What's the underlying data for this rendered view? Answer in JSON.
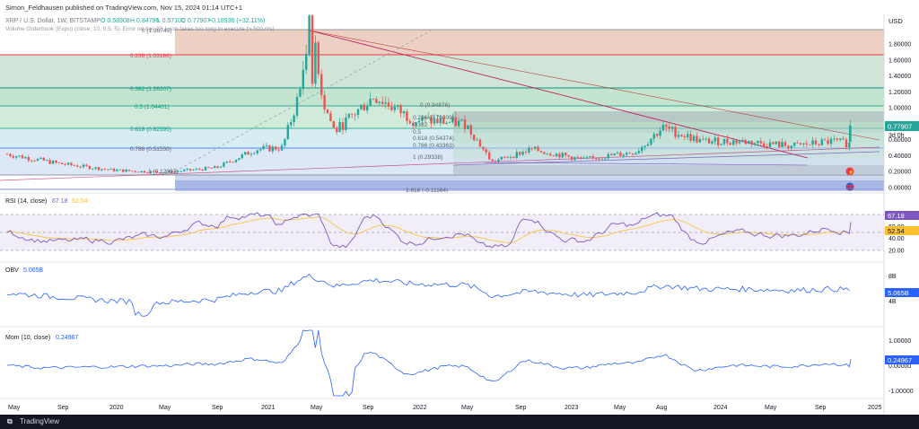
{
  "header": {
    "publisher": "Simon_Feldhausen published on TradingView.com, Nov 15, 2024 01:14 UTC+1",
    "currency": "USD"
  },
  "symbol_line": {
    "symbol": "XRP / U.S. Dollar, 1W, BITSTAMP",
    "open": "O 0.58908",
    "high": "H 0.84796",
    "low": "L 0.57100",
    "close": "C 0.77907",
    "change": "+0.18936 (+32.11%)"
  },
  "indicator_note": "Volume Orderbook (Expo) (close, 10, 0.5, 5): Error on bar 22: Loop takes too long to execute (> 500 ms)",
  "price_pane": {
    "axis_ticks": [
      "1.80000",
      "1.60000",
      "1.40000",
      "1.20000",
      "1.00000",
      "0.80000",
      "0.60000",
      "0.40000",
      "0.20000",
      "0.00000"
    ],
    "last_price": "0.77907",
    "countdown": "3d 0h",
    "fib_left": [
      "0 (1.96749)",
      "0.236 (1.53186)",
      "0.382 (1.26207)",
      "0.5 (1.04401)",
      "0.618 (0.82595)",
      "0.786 (0.51550)",
      "1 (0.12097)",
      "1.618 (-0.11164)"
    ],
    "fib_right": [
      "0 (0.94876)",
      "0.236 (0.79409)",
      "0.382",
      "0.5",
      "0.618 (0.54374)",
      "0.786 (0.43363)",
      "1 (0.29338)"
    ]
  },
  "rsi": {
    "label": "RSI (14, close)",
    "value": "67.18",
    "ma_value": "52.54",
    "axis_ticks": [
      "80.00",
      "60.00",
      "40.00",
      "20.00"
    ]
  },
  "obv": {
    "label": "OBV",
    "value": "5.065B",
    "axis_ticks": [
      "8B",
      "4B"
    ]
  },
  "mom": {
    "label": "Mom (10, close)",
    "value": "0.24967",
    "axis_ticks": [
      "1.00000",
      "0.00000",
      "-1.00000"
    ]
  },
  "x_axis": [
    "May",
    "Sep",
    "2020",
    "May",
    "Sep",
    "2021",
    "May",
    "Sep",
    "2022",
    "May",
    "Sep",
    "2023",
    "May",
    "Aug",
    "2024",
    "May",
    "Sep",
    "2025"
  ],
  "footer": {
    "brand": "TradingView"
  },
  "colors": {
    "up": "#26a69a",
    "down": "#ef5350",
    "rsi": "#7e57c2",
    "line": "#2962ff",
    "fib_red": "#f23645",
    "fib_green": "#089981"
  },
  "chart_data": {
    "type": "candlestick",
    "title": "XRP / U.S. Dollar, 1W, BITSTAMP",
    "ylim": [
      -0.1,
      1.9
    ],
    "series_close_approx": {
      "dates": [
        "2019-05",
        "2019-09",
        "2020-01",
        "2020-05",
        "2020-09",
        "2020-12",
        "2021-02",
        "2021-04",
        "2021-06",
        "2021-09",
        "2021-12",
        "2022-04",
        "2022-06",
        "2022-09",
        "2023-01",
        "2023-05",
        "2023-07",
        "2023-10",
        "2024-01",
        "2024-05",
        "2024-08",
        "2024-10",
        "2024-11"
      ],
      "close": [
        0.42,
        0.3,
        0.22,
        0.19,
        0.25,
        0.48,
        0.5,
        1.55,
        0.7,
        1.15,
        0.85,
        0.8,
        0.32,
        0.48,
        0.35,
        0.45,
        0.75,
        0.58,
        0.58,
        0.52,
        0.58,
        0.53,
        0.78
      ]
    },
    "fib_retracement_1": {
      "levels": [
        0,
        0.236,
        0.382,
        0.5,
        0.618,
        0.786,
        1,
        1.618
      ],
      "prices": [
        1.96749,
        1.53186,
        1.26207,
        1.04401,
        0.82595,
        0.5155,
        0.12097,
        -0.11164
      ]
    },
    "fib_retracement_2": {
      "levels": [
        0,
        0.236,
        0.618,
        0.786,
        1
      ],
      "prices": [
        0.94876,
        0.79409,
        0.54374,
        0.43363,
        0.29338
      ]
    },
    "rsi_last": 67.18,
    "rsi_ma_last": 52.54,
    "obv_last": "5.065B",
    "mom_last": 0.24967
  }
}
